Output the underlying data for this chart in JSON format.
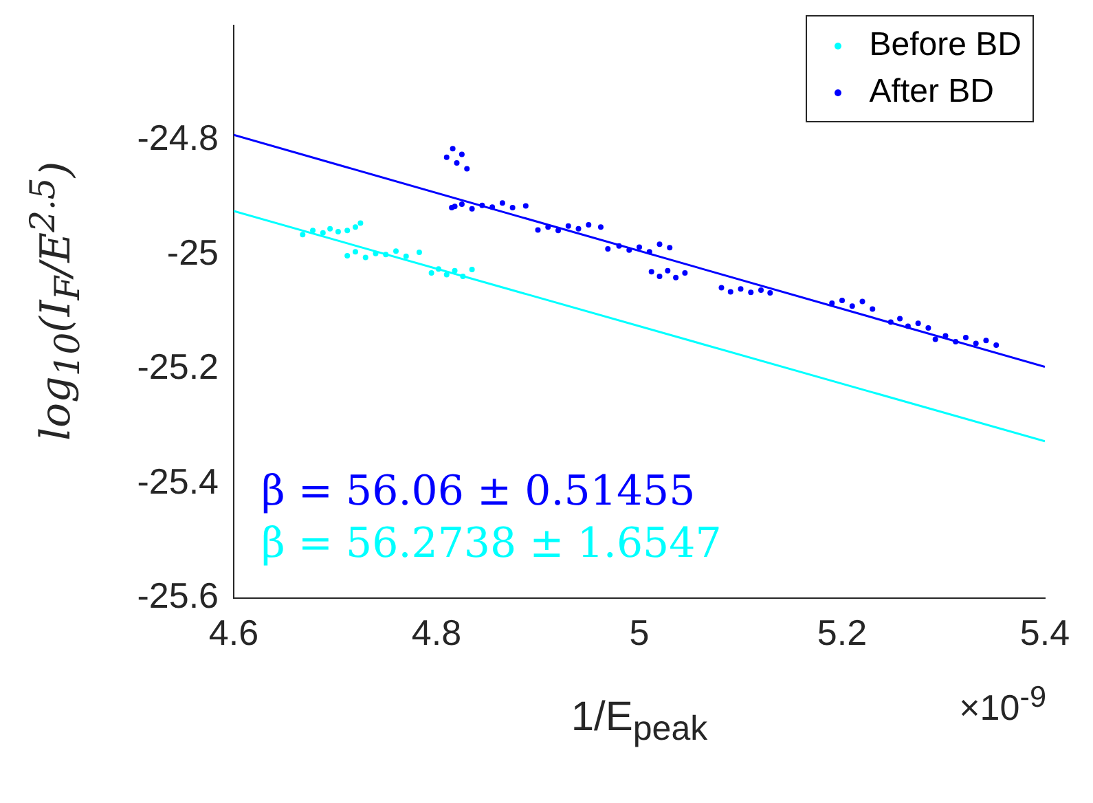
{
  "chart_data": {
    "type": "scatter",
    "xlabel": "1/E$_{peak}$",
    "ylabel": "log$_{10}$(I$_{F}$/E$^{2.5}$)",
    "xlim": [
      4.6,
      5.4
    ],
    "ylim": [
      -25.6,
      -24.6
    ],
    "xticks": [
      4.6,
      4.8,
      5,
      5.2,
      5.4
    ],
    "yticks": [
      -25.6,
      -25.4,
      -25.2,
      -25,
      -24.8
    ],
    "grid": false,
    "legend": "top right",
    "marker": "circle",
    "annotations": [
      "β = 56.06 ± 0.51455",
      "β = 56.2738 ± 1.6547",
      "×10$^{-9}$"
    ],
    "series": [
      {
        "name": "Before BD",
        "color": "#00ffff",
        "x": [
          4.668,
          4.678,
          4.688,
          4.695,
          4.703,
          4.712,
          4.72,
          4.725,
          4.712,
          4.72,
          4.73,
          4.74,
          4.75,
          4.76,
          4.77,
          4.783,
          4.795,
          4.802,
          4.81,
          4.818,
          4.826,
          4.835
        ],
        "values": [
          -24.965,
          -24.958,
          -24.962,
          -24.955,
          -24.96,
          -24.958,
          -24.952,
          -24.945,
          -25.002,
          -24.995,
          -25.005,
          -24.998,
          -25.0,
          -24.994,
          -25.003,
          -24.996,
          -25.032,
          -25.025,
          -25.035,
          -25.028,
          -25.038,
          -25.026
        ]
      },
      {
        "name": "After BD",
        "color": "#0000ff",
        "x": [
          4.81,
          4.816,
          4.82,
          4.825,
          4.83,
          4.818,
          4.815,
          4.825,
          4.835,
          4.845,
          4.855,
          4.865,
          4.875,
          4.888,
          4.9,
          4.91,
          4.92,
          4.93,
          4.94,
          4.95,
          4.962,
          4.969,
          4.98,
          4.99,
          5.0,
          5.01,
          5.02,
          5.03,
          5.012,
          5.02,
          5.028,
          5.036,
          5.045,
          5.081,
          5.09,
          5.1,
          5.11,
          5.12,
          5.129,
          5.19,
          5.2,
          5.21,
          5.22,
          5.23,
          5.248,
          5.257,
          5.265,
          5.275,
          5.285,
          5.292,
          5.302,
          5.312,
          5.322,
          5.332,
          5.342,
          5.352
        ],
        "values": [
          -24.83,
          -24.815,
          -24.84,
          -24.825,
          -24.85,
          -24.916,
          -24.918,
          -24.912,
          -24.92,
          -24.914,
          -24.917,
          -24.91,
          -24.918,
          -24.915,
          -24.957,
          -24.952,
          -24.958,
          -24.95,
          -24.955,
          -24.948,
          -24.952,
          -24.99,
          -24.985,
          -24.992,
          -24.987,
          -24.995,
          -24.982,
          -24.988,
          -25.03,
          -25.038,
          -25.028,
          -25.04,
          -25.032,
          -25.058,
          -25.065,
          -25.06,
          -25.066,
          -25.062,
          -25.067,
          -25.085,
          -25.08,
          -25.09,
          -25.082,
          -25.095,
          -25.118,
          -25.112,
          -25.125,
          -25.12,
          -25.128,
          -25.148,
          -25.142,
          -25.152,
          -25.145,
          -25.155,
          -25.15,
          -25.158
        ]
      },
      {
        "type": "line",
        "marker": "none",
        "color": "#0000ff",
        "x": [
          4.6,
          5.4
        ],
        "values": [
          -24.791,
          -25.196
        ]
      },
      {
        "type": "line",
        "marker": "none",
        "color": "#00ffff",
        "x": [
          4.6,
          5.4
        ],
        "values": [
          -24.924,
          -25.326
        ]
      }
    ]
  }
}
